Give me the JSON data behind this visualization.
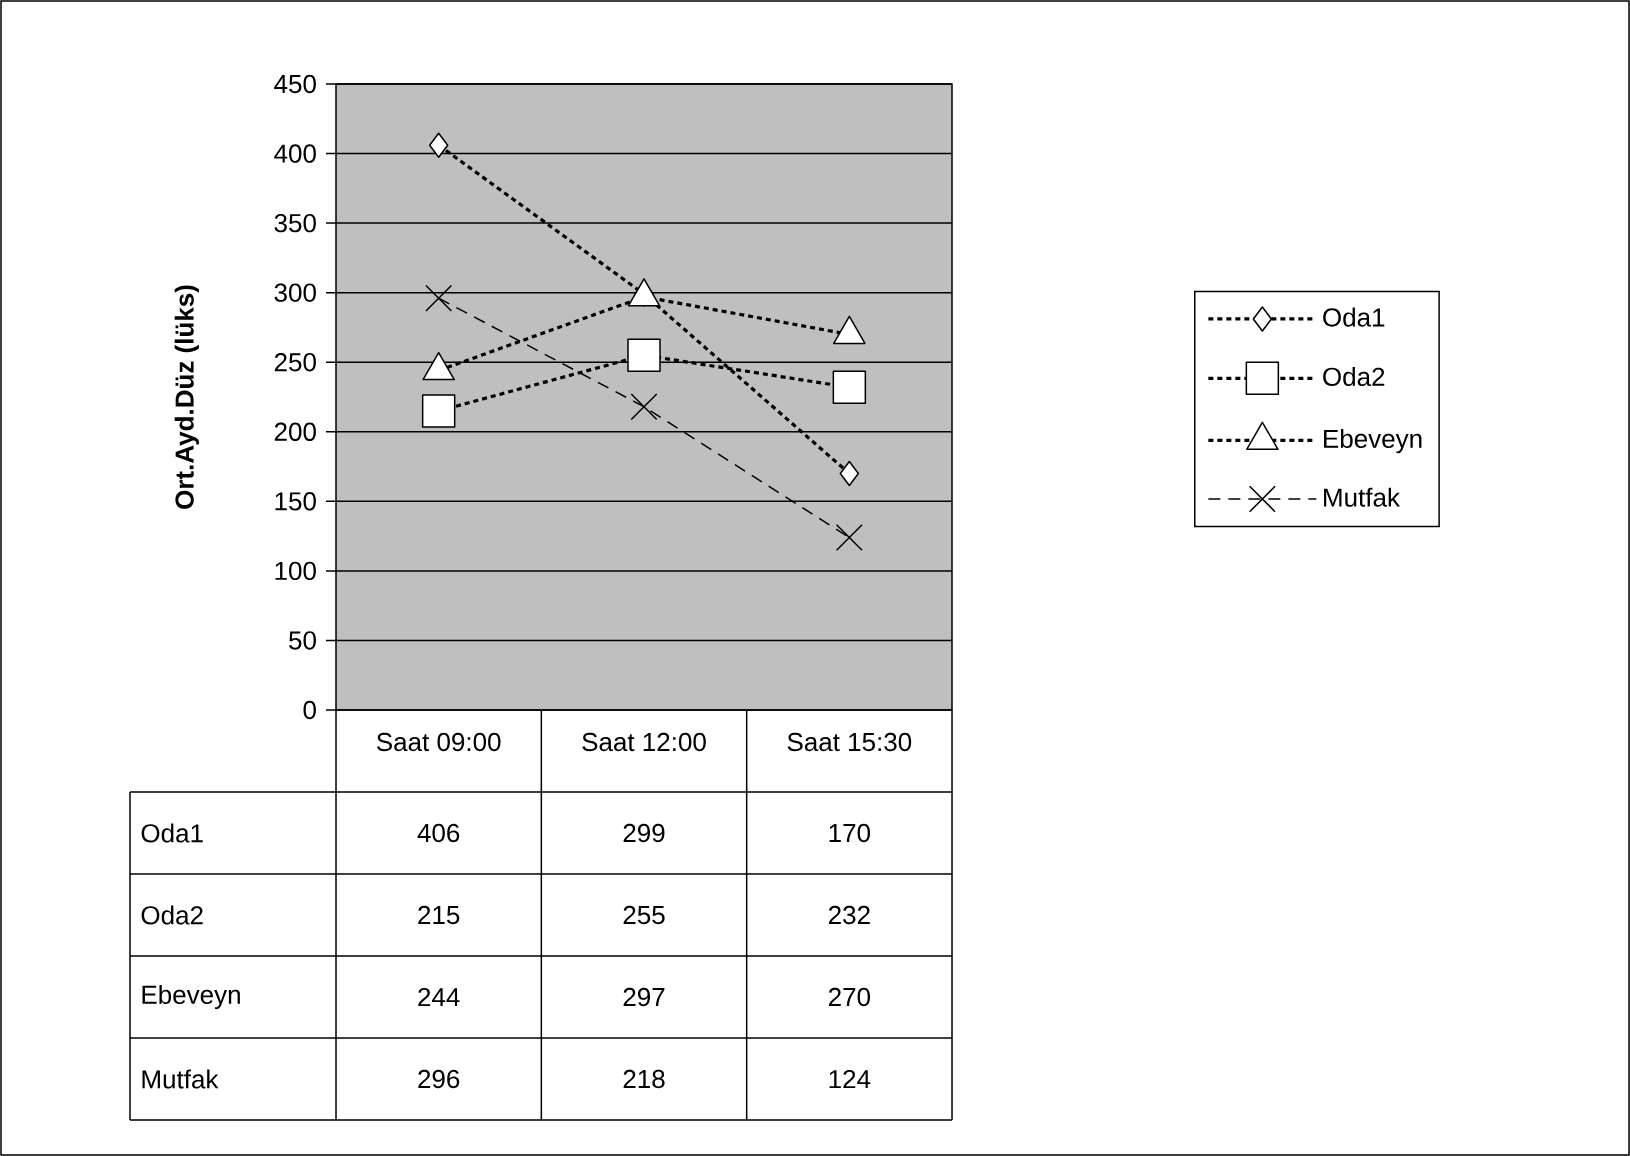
{
  "chart_data": {
    "type": "line",
    "ylabel": "Ort.Ayd.Düz (lüks)",
    "categories": [
      "Saat 09:00",
      "Saat 12:00",
      "Saat 15:30"
    ],
    "ylim": [
      0,
      450
    ],
    "yticks": [
      0,
      50,
      100,
      150,
      200,
      250,
      300,
      350,
      400,
      450
    ],
    "grid": "y",
    "legend": "right",
    "data_labels": true,
    "series": [
      {
        "name": "Oda1",
        "color": "#000000",
        "marker": "diamond",
        "line_style": "dotted",
        "values": [
          406,
          299,
          170
        ]
      },
      {
        "name": "Oda2",
        "color": "#000000",
        "marker": "square",
        "line_style": "dotted",
        "values": [
          215,
          255,
          232
        ]
      },
      {
        "name": "Ebeveyn",
        "color": "#000000",
        "marker": "triangle",
        "line_style": "dotted",
        "values": [
          244,
          297,
          270
        ]
      },
      {
        "name": "Mutfak",
        "color": "#000000",
        "marker": "cross",
        "line_style": "dashed",
        "values": [
          296,
          218,
          124
        ]
      }
    ]
  }
}
